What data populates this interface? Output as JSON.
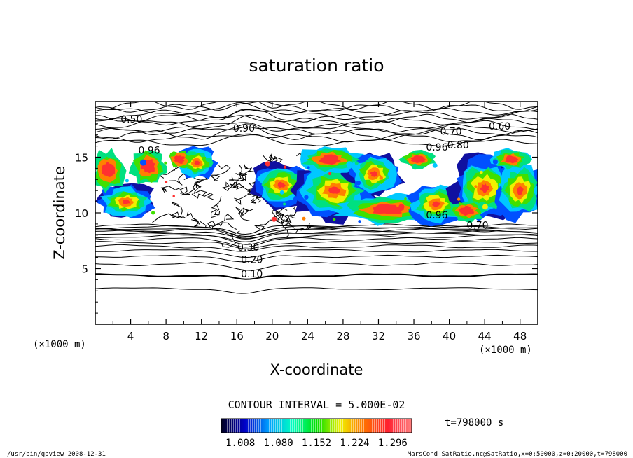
{
  "chart_data": {
    "type": "heatmap",
    "title": "saturation ratio",
    "xlabel": "X-coordinate",
    "ylabel": "Z-coordinate",
    "x_unit": "(×1000 m)",
    "y_unit": "(×1000 m)",
    "xlim": [
      0,
      50
    ],
    "ylim": [
      0,
      20
    ],
    "x_ticks": [
      "4",
      "8",
      "12",
      "16",
      "20",
      "24",
      "28",
      "32",
      "36",
      "40",
      "44",
      "48"
    ],
    "x_tick_values": [
      4,
      8,
      12,
      16,
      20,
      24,
      28,
      32,
      36,
      40,
      44,
      48
    ],
    "y_ticks": [
      "5",
      "10",
      "15"
    ],
    "y_tick_values": [
      5,
      10,
      15
    ],
    "contour_interval_text": "CONTOUR INTERVAL = 5.000E-02",
    "contour_labels": [
      {
        "label": "0.10",
        "x": 17.7,
        "z": 4.2
      },
      {
        "label": "0.20",
        "x": 17.7,
        "z": 5.5
      },
      {
        "label": "0.30",
        "x": 17.3,
        "z": 6.6
      },
      {
        "label": "0.50",
        "x": 4.1,
        "z": 18.1
      },
      {
        "label": "0.60",
        "x": 45.7,
        "z": 17.5
      },
      {
        "label": "0.70",
        "x": 40.2,
        "z": 17.0
      },
      {
        "label": "0.70",
        "x": 43.2,
        "z": 8.6
      },
      {
        "label": "0.80",
        "x": 41.0,
        "z": 15.8
      },
      {
        "label": "0.90",
        "x": 16.8,
        "z": 17.3
      },
      {
        "label": "0.96",
        "x": 6.1,
        "z": 15.3
      },
      {
        "label": "0.96",
        "x": 38.6,
        "z": 15.6
      },
      {
        "label": "0.96",
        "x": 38.6,
        "z": 9.5
      }
    ],
    "colorbar": {
      "tick_labels": [
        "1.008",
        "1.080",
        "1.152",
        "1.224",
        "1.296"
      ],
      "tick_values": [
        1.008,
        1.08,
        1.152,
        1.224,
        1.296
      ],
      "colors": [
        "#000020",
        "#0000c8",
        "#00a0ff",
        "#00ffc0",
        "#00e000",
        "#f0f000",
        "#ff7000",
        "#ff2030",
        "#ff8080"
      ]
    },
    "time_label": "t=798000 s"
  },
  "footer": {
    "left": "/usr/bin/gpview   2008-12-31",
    "right": "MarsCond_SatRatio.nc@SatRatio,x=0:50000,z=0:20000,t=798000"
  }
}
